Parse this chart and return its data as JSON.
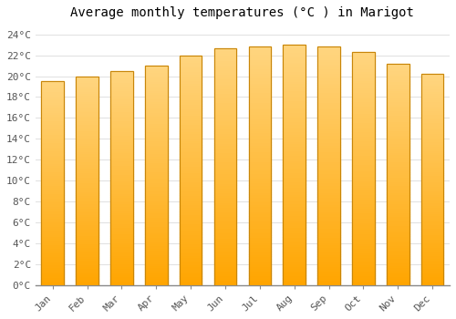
{
  "title": "Average monthly temperatures (°C ) in Marigot",
  "months": [
    "Jan",
    "Feb",
    "Mar",
    "Apr",
    "May",
    "Jun",
    "Jul",
    "Aug",
    "Sep",
    "Oct",
    "Nov",
    "Dec"
  ],
  "values": [
    19.5,
    20.0,
    20.5,
    21.0,
    22.0,
    22.7,
    22.8,
    23.0,
    22.8,
    22.3,
    21.2,
    20.2
  ],
  "bar_color_bottom": "#FFA500",
  "bar_color_top": "#FFD580",
  "bar_edge_color": "#C8860A",
  "background_color": "#FFFFFF",
  "grid_color": "#E0E0E0",
  "ytick_labels": [
    "0°C",
    "2°C",
    "4°C",
    "6°C",
    "8°C",
    "10°C",
    "12°C",
    "14°C",
    "16°C",
    "18°C",
    "20°C",
    "22°C",
    "24°C"
  ],
  "ytick_values": [
    0,
    2,
    4,
    6,
    8,
    10,
    12,
    14,
    16,
    18,
    20,
    22,
    24
  ],
  "ylim": [
    0,
    25
  ],
  "title_fontsize": 10,
  "tick_fontsize": 8,
  "font_family": "monospace",
  "bar_width": 0.65
}
